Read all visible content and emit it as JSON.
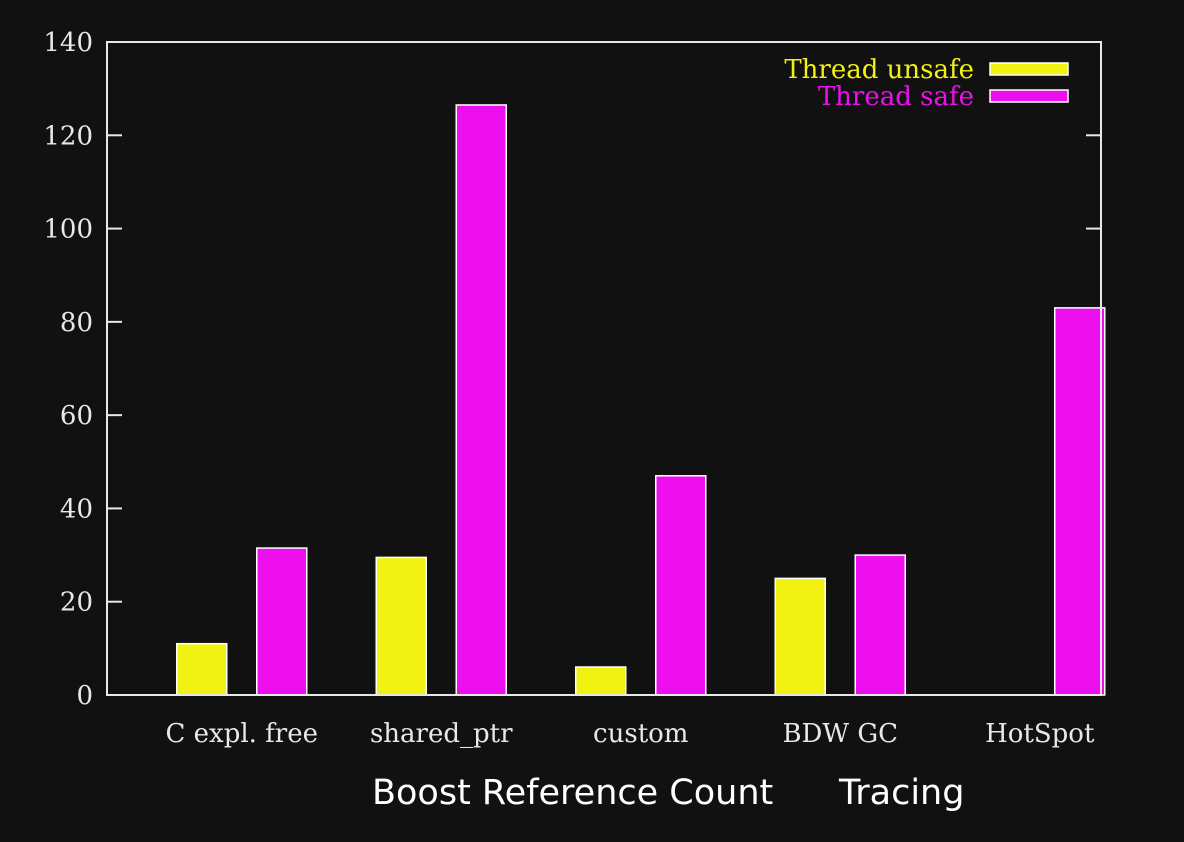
{
  "chart_data": {
    "type": "bar",
    "categories": [
      "C expl. free",
      "shared_ptr",
      "custom",
      "BDW GC",
      "HotSpot"
    ],
    "series": [
      {
        "name": "Thread unsafe",
        "color": "#f2f212",
        "values": [
          11,
          29.5,
          6,
          25,
          null
        ]
      },
      {
        "name": "Thread safe",
        "color": "#ee0fee",
        "values": [
          31.5,
          126.5,
          47,
          30,
          83
        ]
      }
    ],
    "ylim": [
      0,
      140
    ],
    "yticks": [
      "0",
      "20",
      "40",
      "60",
      "80",
      "100",
      "120",
      "140"
    ],
    "legend_position": "top-right",
    "groups": [
      {
        "label": "Boost Reference Count",
        "categories": [
          "shared_ptr",
          "custom"
        ]
      },
      {
        "label": "Tracing",
        "categories": [
          "BDW GC",
          "HotSpot"
        ]
      }
    ]
  }
}
